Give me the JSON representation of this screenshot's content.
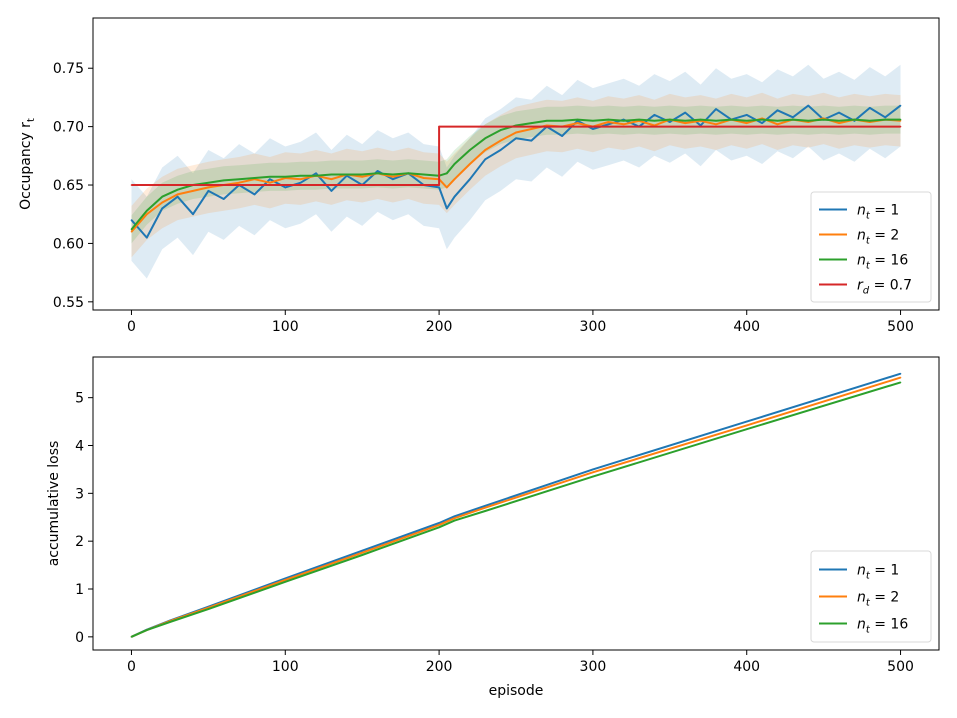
{
  "chart_data": [
    {
      "type": "line",
      "title": "",
      "xlabel": "",
      "ylabel": "Occupancy r",
      "ylabel_sub": "t",
      "xlim": [
        -25,
        525
      ],
      "ylim": [
        0.543,
        0.793
      ],
      "xticks": [
        0,
        100,
        200,
        300,
        400,
        500
      ],
      "xtick_labels": [
        "0",
        "100",
        "200",
        "300",
        "400",
        "500"
      ],
      "yticks": [
        0.55,
        0.6,
        0.65,
        0.7,
        0.75
      ],
      "ytick_labels": [
        "0.55",
        "0.60",
        "0.65",
        "0.70",
        "0.75"
      ],
      "legend_position": "lower-right",
      "series": [
        {
          "name": "n_t = 1",
          "legend": {
            "main": "n",
            "sub": "t",
            "rest": " = 1"
          },
          "color": "#1f77b4",
          "x": [
            0,
            10,
            20,
            30,
            40,
            50,
            60,
            70,
            80,
            90,
            100,
            110,
            120,
            130,
            140,
            150,
            160,
            170,
            180,
            190,
            200,
            205,
            210,
            220,
            230,
            240,
            250,
            260,
            270,
            280,
            290,
            300,
            310,
            320,
            330,
            340,
            350,
            360,
            370,
            380,
            390,
            400,
            410,
            420,
            430,
            440,
            450,
            460,
            470,
            480,
            490,
            500
          ],
          "values": [
            0.62,
            0.605,
            0.63,
            0.64,
            0.625,
            0.645,
            0.638,
            0.65,
            0.642,
            0.655,
            0.648,
            0.652,
            0.66,
            0.645,
            0.658,
            0.65,
            0.662,
            0.655,
            0.66,
            0.65,
            0.648,
            0.63,
            0.64,
            0.655,
            0.672,
            0.68,
            0.69,
            0.688,
            0.7,
            0.692,
            0.705,
            0.698,
            0.702,
            0.706,
            0.7,
            0.71,
            0.704,
            0.712,
            0.701,
            0.715,
            0.706,
            0.71,
            0.703,
            0.714,
            0.708,
            0.718,
            0.706,
            0.712,
            0.705,
            0.716,
            0.708,
            0.718
          ],
          "band": 0.035
        },
        {
          "name": "n_t = 2",
          "legend": {
            "main": "n",
            "sub": "t",
            "rest": " = 2"
          },
          "color": "#ff7f0e",
          "x": [
            0,
            10,
            20,
            30,
            40,
            50,
            60,
            70,
            80,
            90,
            100,
            110,
            120,
            130,
            140,
            150,
            160,
            170,
            180,
            190,
            200,
            205,
            210,
            220,
            230,
            240,
            250,
            260,
            270,
            280,
            290,
            300,
            310,
            320,
            330,
            340,
            350,
            360,
            370,
            380,
            390,
            400,
            410,
            420,
            430,
            440,
            450,
            460,
            470,
            480,
            490,
            500
          ],
          "values": [
            0.61,
            0.625,
            0.635,
            0.642,
            0.645,
            0.648,
            0.65,
            0.652,
            0.655,
            0.652,
            0.656,
            0.655,
            0.658,
            0.655,
            0.659,
            0.657,
            0.66,
            0.657,
            0.66,
            0.656,
            0.655,
            0.648,
            0.655,
            0.668,
            0.68,
            0.688,
            0.695,
            0.698,
            0.701,
            0.7,
            0.703,
            0.7,
            0.704,
            0.702,
            0.705,
            0.701,
            0.706,
            0.703,
            0.705,
            0.702,
            0.706,
            0.703,
            0.707,
            0.702,
            0.706,
            0.704,
            0.707,
            0.703,
            0.706,
            0.704,
            0.706,
            0.705
          ],
          "band": 0.022
        },
        {
          "name": "n_t = 16",
          "legend": {
            "main": "n",
            "sub": "t",
            "rest": " = 16"
          },
          "color": "#2ca02c",
          "x": [
            0,
            10,
            20,
            30,
            40,
            50,
            60,
            70,
            80,
            90,
            100,
            110,
            120,
            130,
            140,
            150,
            160,
            170,
            180,
            190,
            200,
            205,
            210,
            220,
            230,
            240,
            250,
            260,
            270,
            280,
            290,
            300,
            310,
            320,
            330,
            340,
            350,
            360,
            370,
            380,
            390,
            400,
            410,
            420,
            430,
            440,
            450,
            460,
            470,
            480,
            490,
            500
          ],
          "values": [
            0.612,
            0.628,
            0.64,
            0.646,
            0.65,
            0.652,
            0.654,
            0.655,
            0.656,
            0.657,
            0.657,
            0.658,
            0.658,
            0.659,
            0.659,
            0.659,
            0.66,
            0.659,
            0.66,
            0.659,
            0.658,
            0.66,
            0.668,
            0.68,
            0.69,
            0.697,
            0.701,
            0.703,
            0.705,
            0.705,
            0.706,
            0.705,
            0.706,
            0.705,
            0.706,
            0.705,
            0.706,
            0.705,
            0.706,
            0.705,
            0.706,
            0.705,
            0.706,
            0.705,
            0.706,
            0.705,
            0.706,
            0.705,
            0.706,
            0.705,
            0.706,
            0.706
          ],
          "band": 0.012
        },
        {
          "name": "r_d = 0.7",
          "legend": {
            "main": "r",
            "sub": "d",
            "rest": " = 0.7"
          },
          "color": "#d62728",
          "x": [
            0,
            200,
            200,
            500
          ],
          "values": [
            0.65,
            0.65,
            0.7,
            0.7
          ],
          "band": 0
        }
      ]
    },
    {
      "type": "line",
      "title": "",
      "xlabel": "episode",
      "ylabel": "accumulative loss",
      "xlim": [
        -25,
        525
      ],
      "ylim": [
        -0.275,
        5.85
      ],
      "xticks": [
        0,
        100,
        200,
        300,
        400,
        500
      ],
      "xtick_labels": [
        "0",
        "100",
        "200",
        "300",
        "400",
        "500"
      ],
      "yticks": [
        0,
        1,
        2,
        3,
        4,
        5
      ],
      "ytick_labels": [
        "0",
        "1",
        "2",
        "3",
        "4",
        "5"
      ],
      "legend_position": "lower-right",
      "series": [
        {
          "name": "n_t = 1",
          "legend": {
            "main": "n",
            "sub": "t",
            "rest": " = 1"
          },
          "color": "#1f77b4",
          "x": [
            0,
            10,
            25,
            50,
            100,
            150,
            200,
            210,
            230,
            300,
            400,
            500
          ],
          "values": [
            0.0,
            0.15,
            0.34,
            0.63,
            1.22,
            1.8,
            2.38,
            2.52,
            2.74,
            3.5,
            4.5,
            5.5
          ]
        },
        {
          "name": "n_t = 2",
          "legend": {
            "main": "n",
            "sub": "t",
            "rest": " = 2"
          },
          "color": "#ff7f0e",
          "x": [
            0,
            10,
            25,
            50,
            100,
            150,
            200,
            210,
            230,
            300,
            400,
            500
          ],
          "values": [
            0.0,
            0.14,
            0.33,
            0.61,
            1.19,
            1.76,
            2.34,
            2.48,
            2.7,
            3.44,
            4.42,
            5.42
          ]
        },
        {
          "name": "n_t = 16",
          "legend": {
            "main": "n",
            "sub": "t",
            "rest": " = 16"
          },
          "color": "#2ca02c",
          "x": [
            0,
            10,
            25,
            50,
            100,
            150,
            200,
            210,
            230,
            300,
            400,
            500
          ],
          "values": [
            0.0,
            0.14,
            0.31,
            0.58,
            1.15,
            1.71,
            2.29,
            2.43,
            2.63,
            3.35,
            4.34,
            5.32
          ]
        }
      ]
    }
  ]
}
